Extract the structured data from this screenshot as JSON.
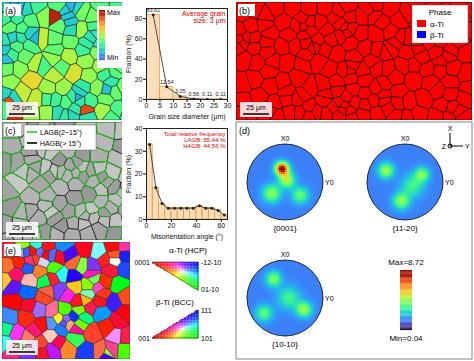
{
  "chart_data": [
    {
      "type": "histogram",
      "bins": [
        0,
        5,
        10,
        15,
        20,
        25,
        30
      ],
      "values": [
        83.61,
        12.54,
        3.05,
        0.56,
        0.11,
        0.11
      ],
      "x_label": "Grain size diameter (μm)",
      "y_label": "Fraction (%)",
      "xlim": [
        0,
        30
      ],
      "xticks": [
        0,
        5,
        10,
        15,
        20,
        25,
        30
      ],
      "ylim": [
        0,
        90
      ],
      "yticks": [
        0,
        20,
        40,
        60,
        80
      ],
      "color": "#f0a040",
      "marker": "circle",
      "data_labels": true,
      "annotations": [
        "Average grain size: 3 μm"
      ]
    },
    {
      "type": "histogram",
      "bins": [
        0,
        5,
        10,
        15,
        20,
        25,
        30,
        35,
        40,
        45,
        50,
        55,
        60,
        65
      ],
      "values": [
        33,
        14,
        7,
        5,
        5,
        5,
        5,
        5,
        6,
        5,
        5,
        4,
        2
      ],
      "x_label": "Misorientation angle (°)",
      "y_label": "Fraction (%)",
      "xlim": [
        0,
        65
      ],
      "xticks": [
        0,
        20,
        40,
        60
      ],
      "ylim": [
        0,
        40
      ],
      "yticks": [
        0,
        10,
        20,
        30,
        40
      ],
      "color": "#f0a040",
      "marker": "circle",
      "annotations": [
        "Total relative frequency",
        "LAGB: 55.44 %",
        "HAGB: 44.56 %"
      ]
    }
  ],
  "figure": {
    "a": {
      "label": "(a)",
      "colorbar": [
        "Max",
        "Min"
      ],
      "scale_bar": "25 μm"
    },
    "b": {
      "label": "(b)",
      "legend_title": "Phase",
      "legend": [
        {
          "name": "α-Ti",
          "color": "#ff0000"
        },
        {
          "name": "β-Ti",
          "color": "#0000ff"
        }
      ],
      "scale_bar": "25 μm"
    },
    "c": {
      "label": "(c)",
      "legend": [
        {
          "name": "LAGB(2~15°)",
          "color": "#22cc22"
        },
        {
          "name": "HAGB(> 15°)",
          "color": "#000000"
        }
      ],
      "scale_bar": "25 μm"
    },
    "d": {
      "label": "(d)",
      "axes": [
        "X",
        "Y",
        "Z"
      ],
      "pole_axes": [
        "X0",
        "Y0"
      ],
      "pole_figures": [
        "{0001}",
        "{11-20}",
        "{10-10}"
      ],
      "colorbar": {
        "max": {
          "value": 8.72,
          "label": "Max=8.72"
        },
        "min": {
          "value": 0.04,
          "label": "Min=0.04"
        }
      }
    },
    "e": {
      "label": "(e)",
      "scale_bar": "25 μm",
      "ipf": [
        {
          "title": "α-Ti (HCP)",
          "corners": [
            "0001",
            "-12-10",
            "01-10"
          ]
        },
        {
          "title": "β-Ti (BCC)",
          "corners": [
            "111",
            "001",
            "101"
          ]
        }
      ]
    }
  }
}
